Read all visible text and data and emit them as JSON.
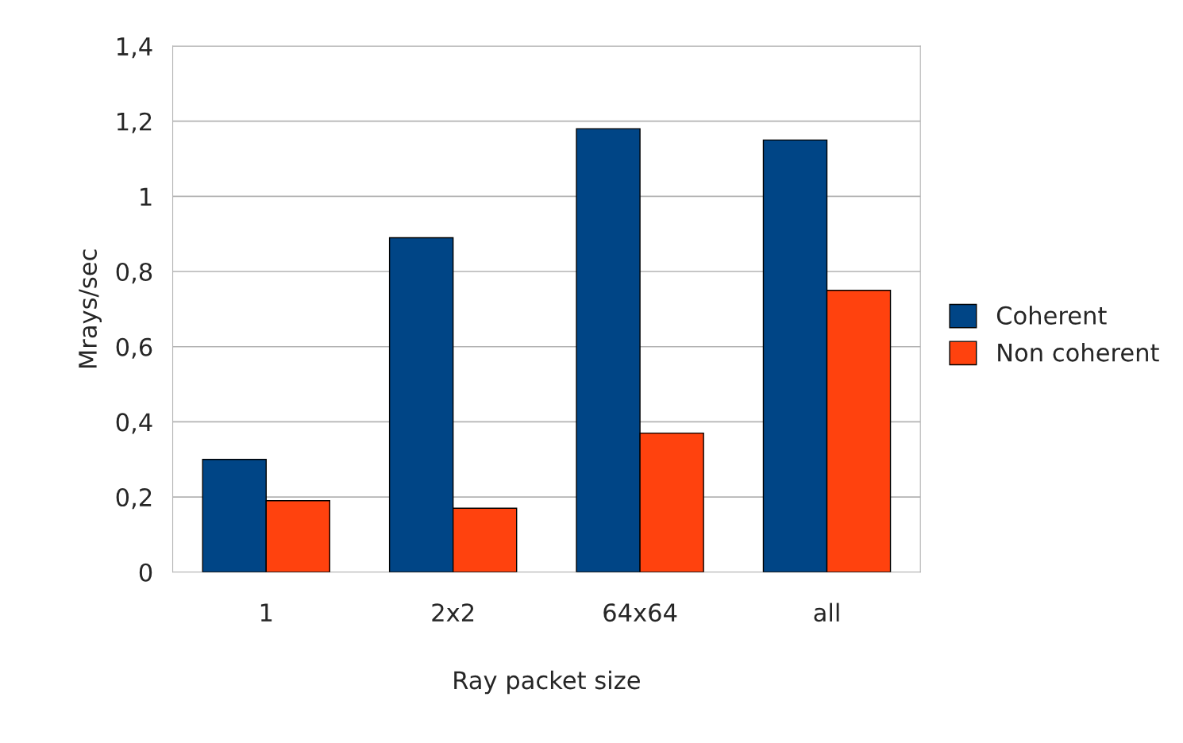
{
  "chart_data": {
    "type": "bar",
    "xlabel": "Ray packet size",
    "ylabel": "Mrays/sec",
    "categories": [
      "1",
      "2x2",
      "64x64",
      "all"
    ],
    "series": [
      {
        "name": "Coherent",
        "color": "#004586",
        "values": [
          0.3,
          0.89,
          1.18,
          1.15
        ]
      },
      {
        "name": "Non coherent",
        "color": "#ff420e",
        "values": [
          0.19,
          0.17,
          0.37,
          0.75
        ]
      }
    ],
    "ylim": [
      0,
      1.4
    ],
    "yticks": [
      0,
      {
        "value": 0.2,
        "label": "0,2"
      },
      {
        "value": 0.4,
        "label": "0,4"
      },
      {
        "value": 0.6,
        "label": "0,6"
      },
      {
        "value": 0.8,
        "label": "0,8"
      },
      1,
      {
        "value": 1.2,
        "label": "1,2"
      },
      {
        "value": 1.4,
        "label": "1,4"
      }
    ],
    "grid": "y",
    "legend": "right"
  }
}
